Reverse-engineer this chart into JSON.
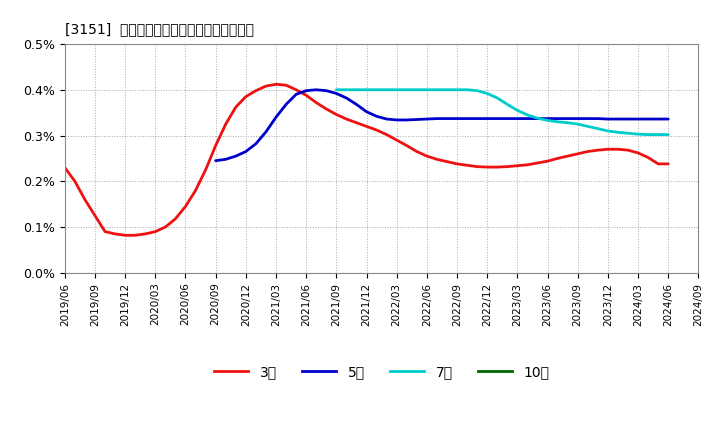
{
  "title": "[3151]  経常利益マージンの標準偏差の推移",
  "ylim": [
    0.0,
    0.005
  ],
  "yticks": [
    0.0,
    0.001,
    0.002,
    0.003,
    0.004,
    0.005
  ],
  "ytick_labels": [
    "0.0%",
    "0.1%",
    "0.2%",
    "0.3%",
    "0.4%",
    "0.5%"
  ],
  "background_color": "#ffffff",
  "grid_color": "#aaaaaa",
  "series": {
    "3year": {
      "color": "#ee1111",
      "label": "3年",
      "x": [
        0,
        1,
        2,
        3,
        4,
        5,
        6,
        7,
        8,
        9,
        10,
        11,
        12,
        13,
        14,
        15,
        16,
        17,
        18,
        19,
        20,
        21,
        22,
        23,
        24,
        25,
        26,
        27,
        28,
        29,
        30,
        31,
        32,
        33,
        34,
        35,
        36,
        37,
        38,
        39,
        40,
        41,
        42,
        43,
        44,
        45,
        46,
        47,
        48,
        49,
        50,
        51,
        52,
        53,
        54,
        55,
        56,
        57,
        58,
        59,
        60
      ],
      "y": [
        0.0023,
        0.002,
        0.0016,
        0.00125,
        0.0009,
        0.00085,
        0.00082,
        0.00082,
        0.00085,
        0.0009,
        0.001,
        0.00118,
        0.00145,
        0.0018,
        0.00225,
        0.00278,
        0.00325,
        0.00362,
        0.00385,
        0.00398,
        0.00408,
        0.00412,
        0.0041,
        0.004,
        0.00388,
        0.00372,
        0.00358,
        0.00346,
        0.00336,
        0.00328,
        0.0032,
        0.00312,
        0.00302,
        0.0029,
        0.00278,
        0.00265,
        0.00255,
        0.00248,
        0.00243,
        0.00238,
        0.00235,
        0.00232,
        0.00231,
        0.00231,
        0.00232,
        0.00234,
        0.00236,
        0.0024,
        0.00244,
        0.0025,
        0.00255,
        0.0026,
        0.00265,
        0.00268,
        0.0027,
        0.0027,
        0.00268,
        0.00262,
        0.00252,
        0.00238,
        0.00238
      ]
    },
    "5year": {
      "color": "#0000cc",
      "label": "5年",
      "x": [
        15,
        16,
        17,
        18,
        19,
        20,
        21,
        22,
        23,
        24,
        25,
        26,
        27,
        28,
        29,
        30,
        31,
        32,
        33,
        34,
        35,
        36,
        37,
        38,
        39,
        40,
        41,
        42,
        43,
        44,
        45,
        46,
        47,
        48,
        49,
        50,
        51,
        52,
        53,
        54,
        55,
        56,
        57,
        58,
        59,
        60
      ],
      "y": [
        0.00245,
        0.00248,
        0.00255,
        0.00265,
        0.00282,
        0.00308,
        0.0034,
        0.00368,
        0.0039,
        0.00398,
        0.004,
        0.00398,
        0.00392,
        0.00382,
        0.00368,
        0.00352,
        0.00342,
        0.00336,
        0.00334,
        0.00334,
        0.00335,
        0.00336,
        0.00337,
        0.00337,
        0.00337,
        0.00337,
        0.00337,
        0.00337,
        0.00337,
        0.00337,
        0.00337,
        0.00337,
        0.00337,
        0.00337,
        0.00337,
        0.00337,
        0.00337,
        0.00337,
        0.00337,
        0.00336,
        0.00336,
        0.00336,
        0.00336,
        0.00336,
        0.00336,
        0.00336
      ]
    },
    "7year": {
      "color": "#00cccc",
      "label": "7年",
      "x": [
        27,
        28,
        29,
        30,
        31,
        32,
        33,
        34,
        35,
        36,
        37,
        38,
        39,
        40,
        41,
        42,
        43,
        44,
        45,
        46,
        47,
        48,
        49,
        50,
        51,
        52,
        53,
        54,
        55,
        56,
        57,
        58,
        59,
        60
      ],
      "y": [
        0.004,
        0.004,
        0.004,
        0.004,
        0.004,
        0.004,
        0.004,
        0.004,
        0.004,
        0.004,
        0.004,
        0.004,
        0.004,
        0.004,
        0.00398,
        0.00392,
        0.00382,
        0.00368,
        0.00355,
        0.00345,
        0.00338,
        0.00333,
        0.0033,
        0.00328,
        0.00325,
        0.0032,
        0.00315,
        0.0031,
        0.00307,
        0.00305,
        0.00303,
        0.00302,
        0.00302,
        0.00302
      ]
    },
    "10year": {
      "color": "#006600",
      "label": "10年",
      "x": [],
      "y": []
    }
  },
  "xtick_positions": [
    0,
    3,
    6,
    9,
    12,
    15,
    18,
    21,
    24,
    27,
    30,
    33,
    36,
    39,
    42,
    45,
    48,
    51,
    54,
    57,
    60,
    63
  ],
  "xtick_labels": [
    "2019/06",
    "2019/09",
    "2019/12",
    "2020/03",
    "2020/06",
    "2020/09",
    "2020/12",
    "2021/03",
    "2021/06",
    "2021/09",
    "2021/12",
    "2022/03",
    "2022/06",
    "2022/09",
    "2022/12",
    "2023/03",
    "2023/06",
    "2023/09",
    "2023/12",
    "2024/03",
    "2024/06",
    "2024/09"
  ],
  "legend_labels": [
    "3年",
    "5年",
    "7年",
    "10年"
  ],
  "legend_colors": [
    "#ee1111",
    "#0000cc",
    "#00cccc",
    "#006600"
  ]
}
